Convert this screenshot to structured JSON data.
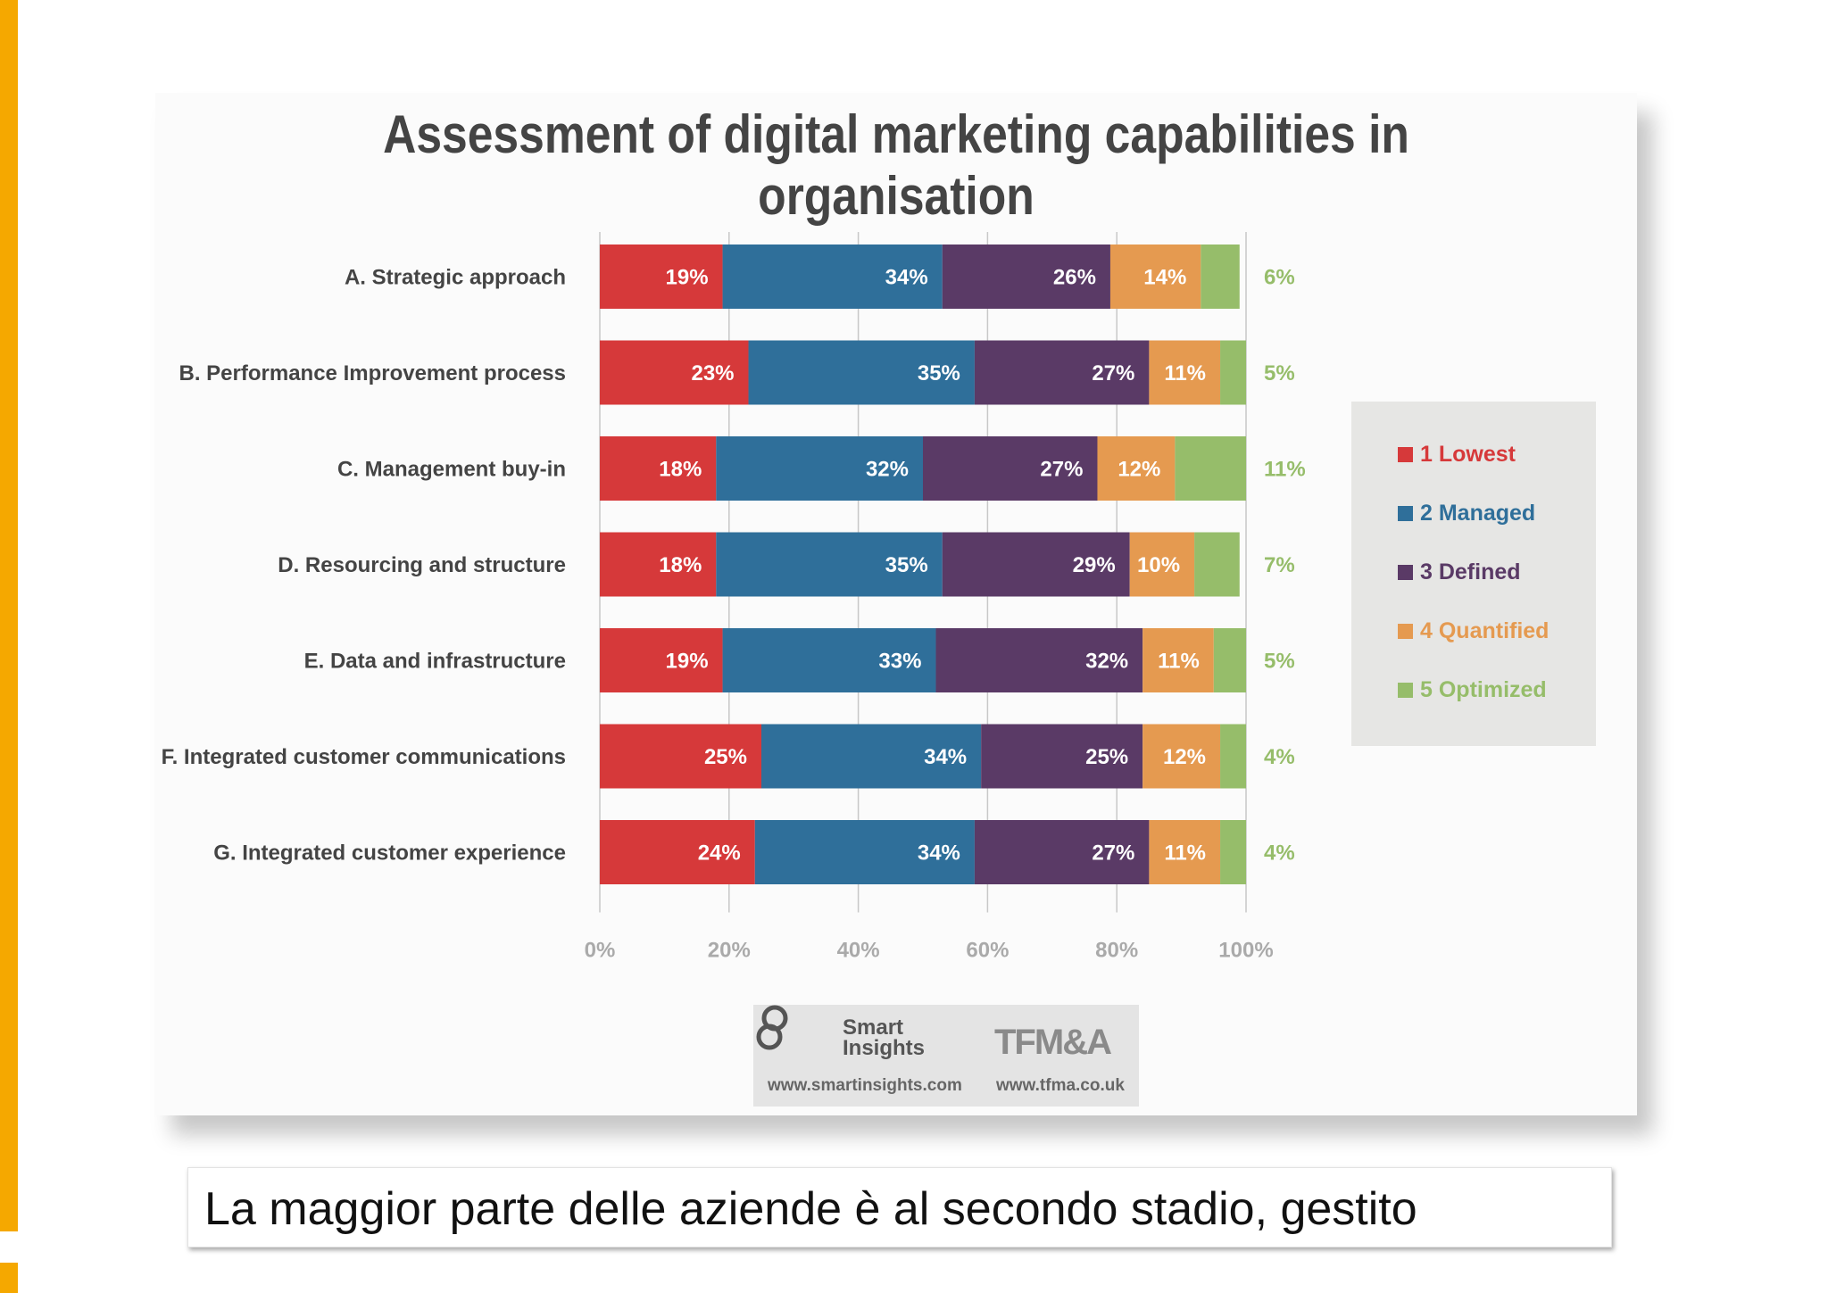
{
  "chart_data": {
    "type": "bar",
    "orientation": "horizontal",
    "stacked": true,
    "title": "Assessment of digital marketing capabilities in organisation",
    "categories": [
      "A. Strategic approach",
      "B. Performance Improvement process",
      "C. Management buy-in",
      "D. Resourcing and structure",
      "E. Data and infrastructure",
      "F. Integrated customer communications",
      "G. Integrated customer experience"
    ],
    "series": [
      {
        "name": "1 Lowest",
        "color": "#d6393a",
        "values": [
          19,
          23,
          18,
          18,
          19,
          25,
          24
        ]
      },
      {
        "name": "2 Managed",
        "color": "#2f6f9a",
        "values": [
          34,
          35,
          32,
          35,
          33,
          34,
          34
        ]
      },
      {
        "name": "3 Defined",
        "color": "#5a3a66",
        "values": [
          26,
          27,
          27,
          29,
          32,
          25,
          27
        ]
      },
      {
        "name": "4 Quantified",
        "color": "#e59a50",
        "values": [
          14,
          11,
          12,
          10,
          11,
          12,
          11
        ]
      },
      {
        "name": "5 Optimized",
        "color": "#96bd6a",
        "values": [
          6,
          5,
          11,
          7,
          5,
          4,
          4
        ]
      }
    ],
    "labels": [
      [
        "19%",
        "34%",
        "26%",
        "14%",
        "6%"
      ],
      [
        "23%",
        "35%",
        "27%",
        "11%",
        "5%"
      ],
      [
        "18%",
        "32%",
        "27%",
        "12%",
        "11%"
      ],
      [
        "18%",
        "35%",
        "29%",
        "10%",
        "7%"
      ],
      [
        "19%",
        "33%",
        "32%",
        "11%",
        "5%"
      ],
      [
        "25%",
        "34%",
        "25%",
        "12%",
        "4%"
      ],
      [
        "24%",
        "34%",
        "27%",
        "11%",
        "4%"
      ]
    ],
    "xlabel": "",
    "ylabel": "",
    "xlim": [
      0,
      100
    ],
    "xticks": [
      0,
      20,
      40,
      60,
      80,
      100
    ],
    "xtick_labels": [
      "0%",
      "20%",
      "40%",
      "60%",
      "80%",
      "100%"
    ],
    "grid": true,
    "legend": "right"
  },
  "legend": {
    "items": [
      {
        "label": "1 Lowest",
        "color": "#d6393a"
      },
      {
        "label": "2 Managed",
        "color": "#2f6f9a"
      },
      {
        "label": "3 Defined",
        "color": "#5a3a66"
      },
      {
        "label": "4 Quantified",
        "color": "#e59a50"
      },
      {
        "label": "5 Optimized",
        "color": "#96bd6a"
      }
    ]
  },
  "logos": {
    "smart_insights": "Smart Insights",
    "smart_insights_line1": "Smart",
    "smart_insights_line2": "Insights",
    "tfma": "TFM&A",
    "url_smart": "www.smartinsights.com",
    "url_tfma": "www.tfma.co.uk"
  },
  "caption": "La maggior parte delle aziende è al secondo stadio, gestito"
}
